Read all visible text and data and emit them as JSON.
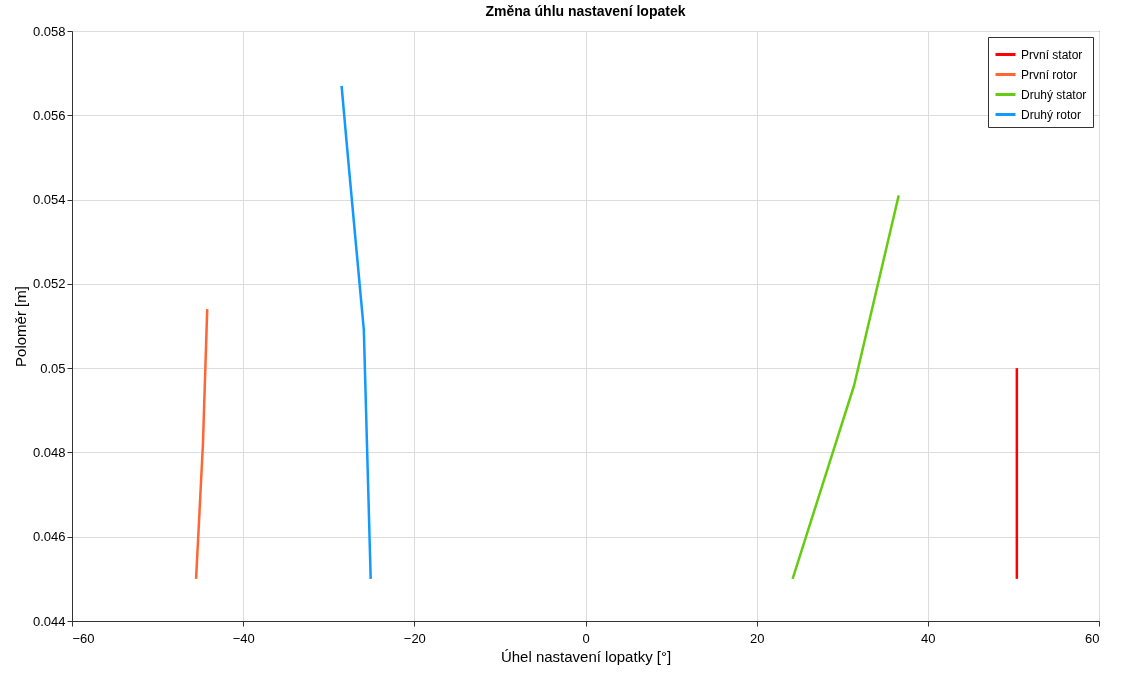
{
  "chart_data": {
    "type": "line",
    "title": "Změna úhlu nastavení lopatek",
    "xlabel": "Úhel nastavení lopatky [°]",
    "ylabel": "Poloměr [m]",
    "series": [
      {
        "name": "První stator",
        "color": "#ff0000",
        "x": [
          50.4,
          50.4
        ],
        "values": [
          0.045,
          0.05
        ]
      },
      {
        "name": "První rotor",
        "color": "#ff6633",
        "x": [
          -45.5,
          -44.7,
          -44.2
        ],
        "values": [
          0.045,
          0.0482,
          0.0514
        ]
      },
      {
        "name": "Druhý stator",
        "color": "#66cc11",
        "x": [
          24.2,
          31.4,
          36.6
        ],
        "values": [
          0.045,
          0.0496,
          0.0541
        ]
      },
      {
        "name": "Druhý rotor",
        "color": "#1199ff",
        "x": [
          -25.1,
          -25.9,
          -27.8,
          -28.5
        ],
        "values": [
          0.045,
          0.0509,
          0.0551,
          0.0567
        ]
      }
    ],
    "xlim": [
      -60,
      60
    ],
    "xticks": [
      -60,
      -40,
      -20,
      0,
      20,
      40,
      60
    ],
    "ylim": [
      0.044,
      0.058
    ],
    "yticks": [
      0.044,
      0.046,
      0.048,
      0.05,
      0.052,
      0.054,
      0.056,
      0.058
    ],
    "grid": true,
    "legend": "top right",
    "line_style": "solid",
    "marker": "none"
  }
}
